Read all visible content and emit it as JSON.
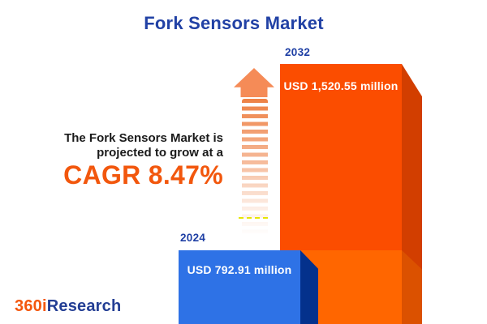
{
  "header": {
    "title": "Fork Sensors Market"
  },
  "growth_note": {
    "line1": "The Fork Sensors Market is",
    "line2": "projected to grow at a",
    "cagr": "CAGR 8.47%"
  },
  "bars": [
    {
      "year": "2024",
      "value_label": "USD 792.91 million"
    },
    {
      "year": "2032",
      "value_label": "USD 1,520.55 million"
    }
  ],
  "logo": {
    "part1": "360i",
    "part2": "Research"
  },
  "icons": {
    "growth_arrow": "striped-up-arrow"
  },
  "colors": {
    "title_blue": "#2141A5",
    "year_blue": "#1E3FA4",
    "text_dark": "#1A1A1A",
    "accent_orange": "#F2570D",
    "bar2024_face": "#2E72E6",
    "bar2024_side": "#04318C",
    "bar2032_face": "#FB4D00",
    "bar2032_side": "#D23E00",
    "block_face": "#FF6600",
    "block_side": "#DB5100",
    "arrow_head": "#F58B57",
    "stripe": "#EE8145",
    "dash_yellow": "#E6E600",
    "logo_orange": "#F4570D",
    "logo_blue": "#233E94"
  },
  "chart_data": {
    "type": "bar",
    "title": "Fork Sensors Market",
    "categories": [
      "2024",
      "2032"
    ],
    "values": [
      792.91,
      1520.55
    ],
    "value_labels": [
      "USD 792.91 million",
      "USD 1,520.55 million"
    ],
    "unit": "USD million",
    "cagr_percent": 8.47,
    "annotation": "The Fork Sensors Market is projected to grow at a CAGR 8.47%",
    "bar_colors": [
      "#2E72E6",
      "#FB4D00"
    ],
    "legend": "none",
    "grid": false,
    "style": "3d-cuboid bars, labels inside bars, years above bars"
  }
}
